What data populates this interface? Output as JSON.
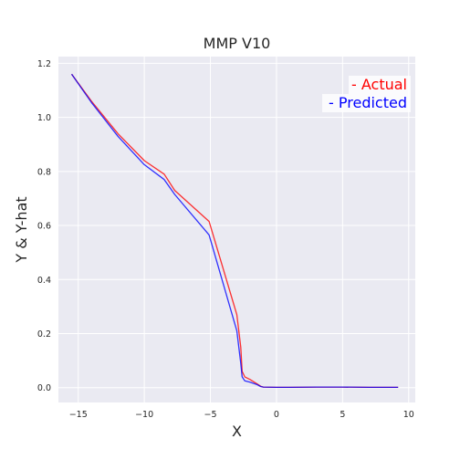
{
  "chart_data": {
    "type": "line",
    "title": "MMP V10",
    "xlabel": "X",
    "ylabel": "Y & Y-hat",
    "xlim": [
      -16.5,
      10.5
    ],
    "ylim": [
      -0.055,
      1.225
    ],
    "xticks": [
      -15,
      -10,
      -5,
      0,
      5,
      10
    ],
    "yticks": [
      0.0,
      0.2,
      0.4,
      0.6,
      0.8,
      1.0,
      1.2
    ],
    "xtick_labels": [
      "−15",
      "−10",
      "−5",
      "0",
      "5",
      "10"
    ],
    "ytick_labels": [
      "0.0",
      "0.2",
      "0.4",
      "0.6",
      "0.8",
      "1.0",
      "1.2"
    ],
    "grid": true,
    "background": "#EAEAF2",
    "legend_placement": "top-right",
    "series": [
      {
        "name": "- Actual",
        "color": "#FF0000",
        "x": [
          -15.5,
          -14,
          -12,
          -10,
          -8.5,
          -7.7,
          -5.1,
          -3,
          -2.7,
          -2.6,
          -2.4,
          -2,
          -1.5,
          -1.2,
          -1,
          0,
          1,
          3,
          5,
          7,
          9.2
        ],
        "y": [
          1.16,
          1.06,
          0.94,
          0.84,
          0.79,
          0.73,
          0.615,
          0.27,
          0.15,
          0.06,
          0.04,
          0.03,
          0.015,
          0.005,
          0.002,
          0.001,
          0.001,
          0.002,
          0.002,
          0.001,
          0.001
        ]
      },
      {
        "name": "- Predicted",
        "color": "#0000FF",
        "x": [
          -15.5,
          -14,
          -12,
          -10,
          -8.5,
          -7.7,
          -5.1,
          -3,
          -2.7,
          -2.6,
          -2.4,
          -2,
          -1.5,
          -1.2,
          -1,
          0,
          1,
          3,
          5,
          7,
          9.2
        ],
        "y": [
          1.16,
          1.055,
          0.93,
          0.825,
          0.77,
          0.715,
          0.565,
          0.21,
          0.09,
          0.04,
          0.025,
          0.02,
          0.012,
          0.004,
          0.002,
          0.001,
          0.001,
          0.002,
          0.002,
          0.001,
          0.001
        ]
      }
    ]
  }
}
